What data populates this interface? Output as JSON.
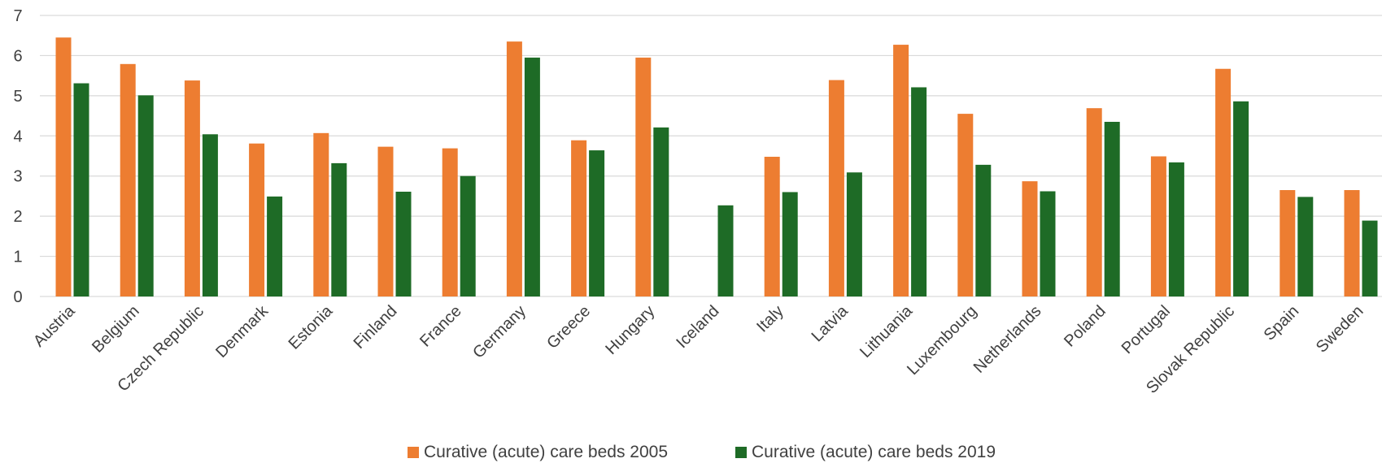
{
  "chart_data": {
    "type": "bar",
    "categories": [
      "Austria",
      "Belgium",
      "Czech Republic",
      "Denmark",
      "Estonia",
      "Finland",
      "France",
      "Germany",
      "Greece",
      "Hungary",
      "Iceland",
      "Italy",
      "Latvia",
      "Lithuania",
      "Luxembourg",
      "Netherlands",
      "Poland",
      "Portugal",
      "Slovak Republic",
      "Spain",
      "Sweden"
    ],
    "series": [
      {
        "name": "Curative (acute) care beds 2005",
        "color": "#ed7d31",
        "values": [
          6.45,
          5.79,
          5.38,
          3.81,
          4.07,
          3.73,
          3.69,
          6.35,
          3.89,
          5.95,
          null,
          3.48,
          5.39,
          6.27,
          4.55,
          2.87,
          4.69,
          3.49,
          5.67,
          2.65,
          2.65
        ]
      },
      {
        "name": "Curative (acute) care beds 2019",
        "color": "#1e6b26",
        "values": [
          5.31,
          5.01,
          4.04,
          2.49,
          3.32,
          2.61,
          3.0,
          5.95,
          3.64,
          4.21,
          2.27,
          2.6,
          3.09,
          5.21,
          3.28,
          2.62,
          4.35,
          3.34,
          4.86,
          2.48,
          1.89
        ]
      }
    ],
    "ylim": [
      0,
      7
    ],
    "yticks": [
      "0",
      "1",
      "2",
      "3",
      "4",
      "5",
      "6",
      "7"
    ],
    "grid": true,
    "legend_position": "bottom"
  }
}
